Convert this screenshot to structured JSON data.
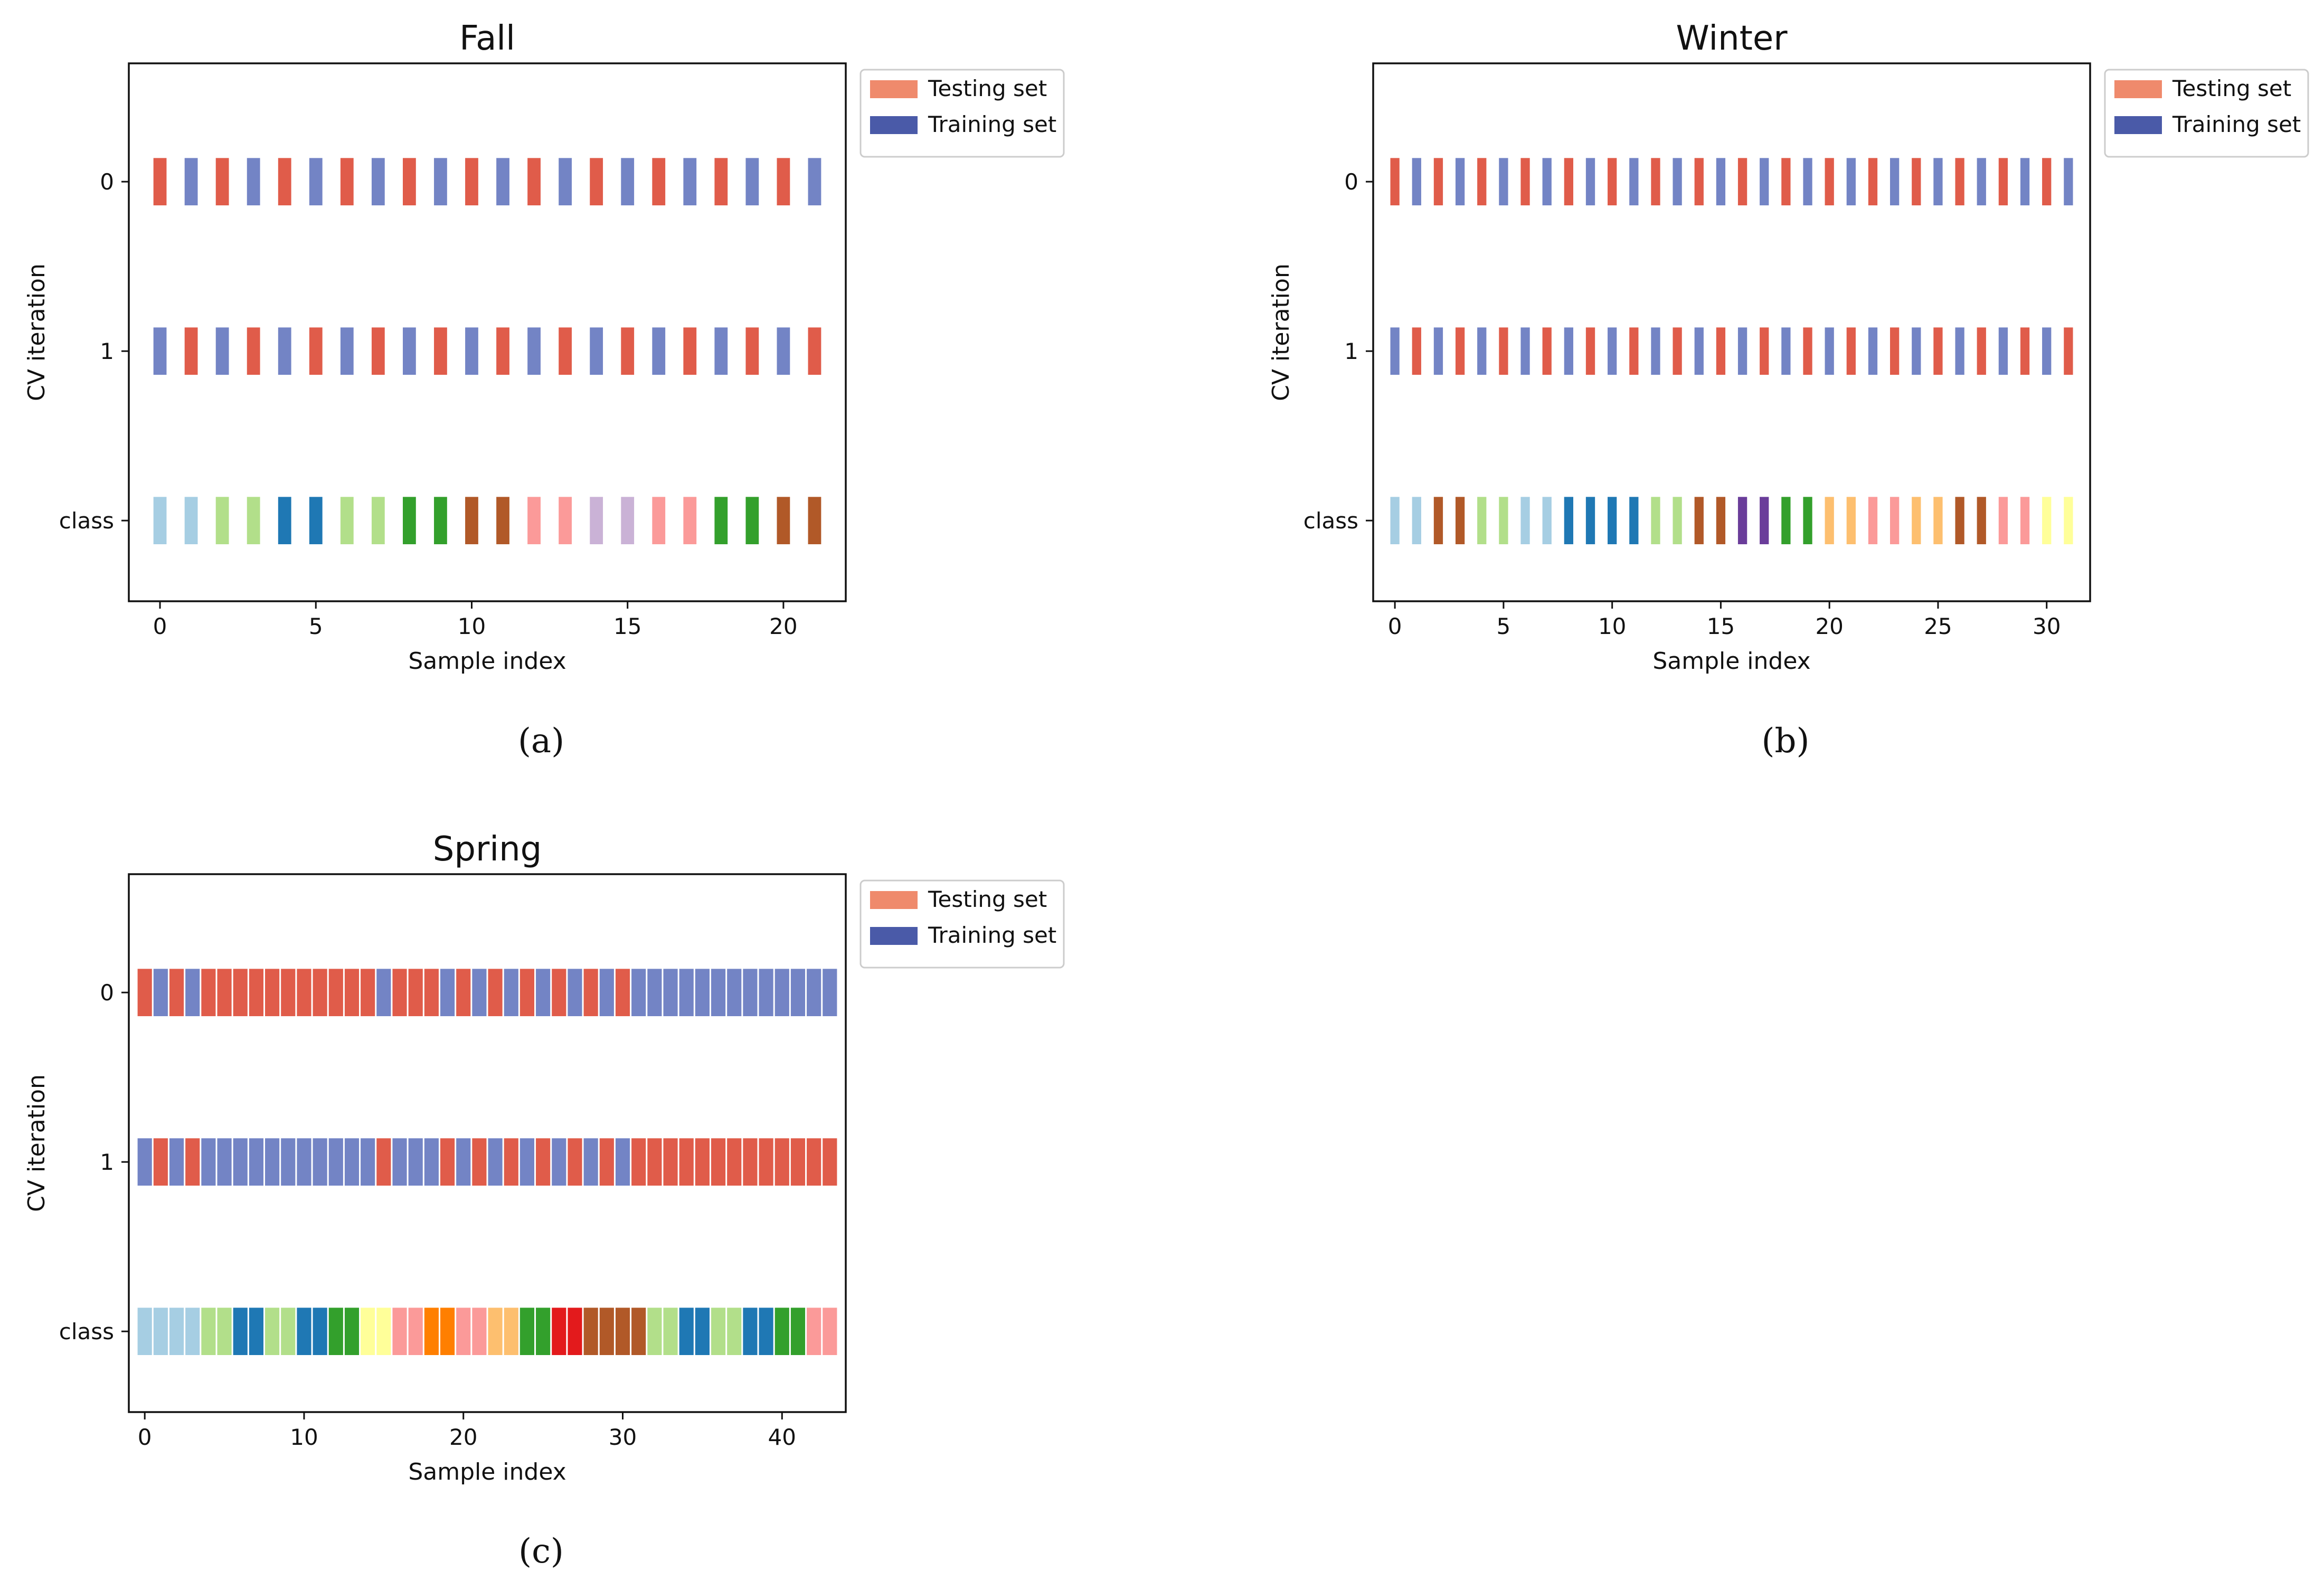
{
  "figure_id": "cv-figure",
  "colors": {
    "testing": "#e05c4a",
    "training": "#7384c5",
    "legend_testing": "#ef8a6c",
    "legend_training": "#4a5aa8"
  },
  "chart_data": [
    {
      "type": "bar",
      "panel_id": "fall",
      "caption": "(a)",
      "title": "Fall",
      "xlabel": "Sample index",
      "ylabel": "CV iteration",
      "y_categories": [
        "0",
        "1",
        "class"
      ],
      "xlim": [
        -1,
        22
      ],
      "xticks": [
        0,
        5,
        10,
        15,
        20
      ],
      "legend": {
        "position": "outside-top-right",
        "entries": [
          "Testing set",
          "Training set"
        ]
      },
      "n_samples": 22,
      "iteration_0": [
        "test",
        "train",
        "test",
        "train",
        "test",
        "train",
        "test",
        "train",
        "test",
        "train",
        "test",
        "train",
        "test",
        "train",
        "test",
        "train",
        "test",
        "train",
        "test",
        "train",
        "test",
        "train"
      ],
      "iteration_1": [
        "train",
        "test",
        "train",
        "test",
        "train",
        "test",
        "train",
        "test",
        "train",
        "test",
        "train",
        "test",
        "train",
        "test",
        "train",
        "test",
        "train",
        "test",
        "train",
        "test",
        "train",
        "test"
      ],
      "class_colors": [
        "#a6cee3",
        "#a6cee3",
        "#b2df8a",
        "#b2df8a",
        "#1f78b4",
        "#1f78b4",
        "#b2df8a",
        "#b2df8a",
        "#33a02c",
        "#33a02c",
        "#b15928",
        "#b15928",
        "#fb9a99",
        "#fb9a99",
        "#cab2d6",
        "#cab2d6",
        "#fb9a99",
        "#fb9a99",
        "#33a02c",
        "#33a02c",
        "#b15928",
        "#b15928"
      ]
    },
    {
      "type": "bar",
      "panel_id": "winter",
      "caption": "(b)",
      "title": "Winter",
      "xlabel": "Sample index",
      "ylabel": "CV iteration",
      "y_categories": [
        "0",
        "1",
        "class"
      ],
      "xlim": [
        -1,
        32
      ],
      "xticks": [
        0,
        5,
        10,
        15,
        20,
        25,
        30
      ],
      "legend": {
        "position": "outside-top-right",
        "entries": [
          "Testing set",
          "Training set"
        ]
      },
      "n_samples": 32,
      "iteration_0": [
        "test",
        "train",
        "test",
        "train",
        "test",
        "train",
        "test",
        "train",
        "test",
        "train",
        "test",
        "train",
        "test",
        "train",
        "test",
        "train",
        "test",
        "train",
        "test",
        "train",
        "test",
        "train",
        "test",
        "train",
        "test",
        "train",
        "test",
        "train",
        "test",
        "train",
        "test",
        "train"
      ],
      "iteration_1": [
        "train",
        "test",
        "train",
        "test",
        "train",
        "test",
        "train",
        "test",
        "train",
        "test",
        "train",
        "test",
        "train",
        "test",
        "train",
        "test",
        "train",
        "test",
        "train",
        "test",
        "train",
        "test",
        "train",
        "test",
        "train",
        "test",
        "train",
        "test",
        "train",
        "test",
        "train",
        "test"
      ],
      "class_colors": [
        "#a6cee3",
        "#a6cee3",
        "#b15928",
        "#b15928",
        "#b2df8a",
        "#b2df8a",
        "#a6cee3",
        "#a6cee3",
        "#1f78b4",
        "#1f78b4",
        "#1f78b4",
        "#1f78b4",
        "#b2df8a",
        "#b2df8a",
        "#b15928",
        "#b15928",
        "#6a3d9a",
        "#6a3d9a",
        "#33a02c",
        "#33a02c",
        "#fdbf6f",
        "#fdbf6f",
        "#fb9a99",
        "#fb9a99",
        "#fdbf6f",
        "#fdbf6f",
        "#b15928",
        "#b15928",
        "#fb9a99",
        "#fb9a99",
        "#ffff99",
        "#ffff99"
      ]
    },
    {
      "type": "bar",
      "panel_id": "spring",
      "caption": "(c)",
      "title": "Spring",
      "xlabel": "Sample index",
      "ylabel": "CV iteration",
      "y_categories": [
        "0",
        "1",
        "class"
      ],
      "xlim": [
        -1,
        44
      ],
      "xticks": [
        0,
        10,
        20,
        30,
        40
      ],
      "legend": {
        "position": "outside-top-right",
        "entries": [
          "Testing set",
          "Training set"
        ]
      },
      "n_samples": 44,
      "iteration_0": [
        "test",
        "train",
        "test",
        "train",
        "test",
        "test",
        "test",
        "test",
        "test",
        "test",
        "test",
        "test",
        "test",
        "test",
        "test",
        "train",
        "test",
        "test",
        "test",
        "train",
        "test",
        "train",
        "test",
        "train",
        "test",
        "train",
        "test",
        "train",
        "test",
        "train",
        "test",
        "train",
        "train",
        "train",
        "train",
        "train",
        "train",
        "train",
        "train",
        "train",
        "train",
        "train",
        "train",
        "train"
      ],
      "iteration_1": [
        "train",
        "test",
        "train",
        "test",
        "train",
        "train",
        "train",
        "train",
        "train",
        "train",
        "train",
        "train",
        "train",
        "train",
        "train",
        "test",
        "train",
        "train",
        "train",
        "test",
        "train",
        "test",
        "train",
        "test",
        "train",
        "test",
        "train",
        "test",
        "train",
        "test",
        "train",
        "test",
        "test",
        "test",
        "test",
        "test",
        "test",
        "test",
        "test",
        "test",
        "test",
        "test",
        "test",
        "test"
      ],
      "class_colors": [
        "#a6cee3",
        "#a6cee3",
        "#a6cee3",
        "#a6cee3",
        "#b2df8a",
        "#b2df8a",
        "#1f78b4",
        "#1f78b4",
        "#b2df8a",
        "#b2df8a",
        "#1f78b4",
        "#1f78b4",
        "#33a02c",
        "#33a02c",
        "#ffff99",
        "#ffff99",
        "#fb9a99",
        "#fb9a99",
        "#ff7f00",
        "#ff7f00",
        "#fb9a99",
        "#fb9a99",
        "#fdbf6f",
        "#fdbf6f",
        "#33a02c",
        "#33a02c",
        "#e31a1c",
        "#e31a1c",
        "#b15928",
        "#b15928",
        "#b15928",
        "#b15928",
        "#b2df8a",
        "#b2df8a",
        "#1f78b4",
        "#1f78b4",
        "#b2df8a",
        "#b2df8a",
        "#1f78b4",
        "#1f78b4",
        "#33a02c",
        "#33a02c",
        "#fb9a99",
        "#fb9a99"
      ]
    }
  ]
}
